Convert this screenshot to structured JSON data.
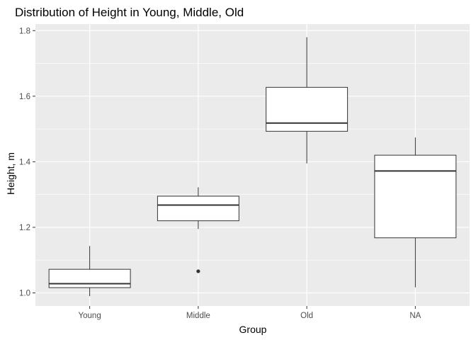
{
  "chart_data": {
    "type": "boxplot",
    "title": "Distribution of Height in Young, Middle, Old",
    "xlabel": "Group",
    "ylabel": "Height, m",
    "categories": [
      "Young",
      "Middle",
      "Old",
      "NA"
    ],
    "ylim": [
      0.96,
      1.82
    ],
    "yticks": [
      1.0,
      1.2,
      1.4,
      1.6,
      1.8
    ],
    "yticks_labels": [
      "1.0",
      "1.2",
      "1.4",
      "1.6",
      "1.8"
    ],
    "grid": true,
    "boxes": [
      {
        "category": "Young",
        "min": 0.99,
        "q1": 1.016,
        "median": 1.028,
        "q3": 1.072,
        "max": 1.143,
        "outliers": []
      },
      {
        "category": "Middle",
        "min": 1.195,
        "q1": 1.22,
        "median": 1.268,
        "q3": 1.295,
        "max": 1.322,
        "outliers": [
          1.066
        ]
      },
      {
        "category": "Old",
        "min": 1.395,
        "q1": 1.493,
        "median": 1.518,
        "q3": 1.627,
        "max": 1.78,
        "outliers": []
      },
      {
        "category": "NA",
        "min": 1.017,
        "q1": 1.168,
        "median": 1.372,
        "q3": 1.42,
        "max": 1.474,
        "outliers": []
      }
    ],
    "colors": {
      "panel": "#ebebeb",
      "grid_major": "#ffffff",
      "box_fill": "#ffffff",
      "box_line": "#333333"
    }
  }
}
